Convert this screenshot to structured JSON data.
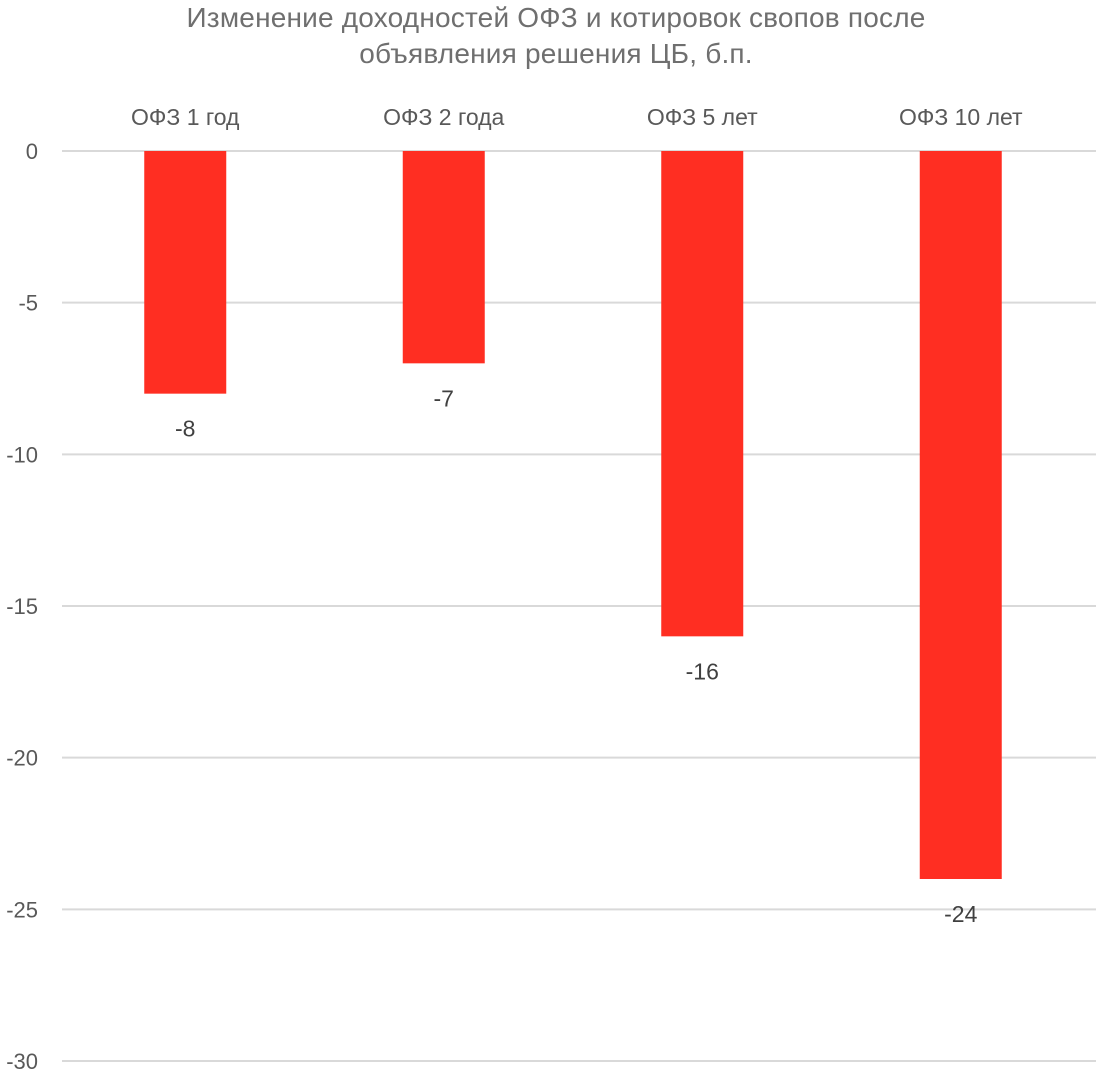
{
  "chart_data": {
    "type": "bar",
    "title": "Изменение доходностей ОФЗ и котировок свопов после объявления решения ЦБ, б.п.",
    "title_lines": [
      "Изменение доходностей ОФЗ и котировок свопов после",
      "объявления решения ЦБ, б.п."
    ],
    "categories": [
      "ОФЗ 1 год",
      "ОФЗ 2 года",
      "ОФЗ 5 лет",
      "ОФЗ 10 лет"
    ],
    "values": [
      -8,
      -7,
      -16,
      -24
    ],
    "data_labels": [
      "-8",
      "-7",
      "-16",
      "-24"
    ],
    "ylim": [
      -30,
      0
    ],
    "yticks": [
      0,
      -5,
      -10,
      -15,
      -20,
      -25,
      -30
    ],
    "ytick_labels": [
      "0",
      "-5",
      "-10",
      "-15",
      "-20",
      "-25",
      "-30"
    ],
    "xlabel": "",
    "ylabel": "",
    "grid": true,
    "category_axis_position": "top",
    "legend": "none",
    "bar_color": "#ff2e22"
  }
}
